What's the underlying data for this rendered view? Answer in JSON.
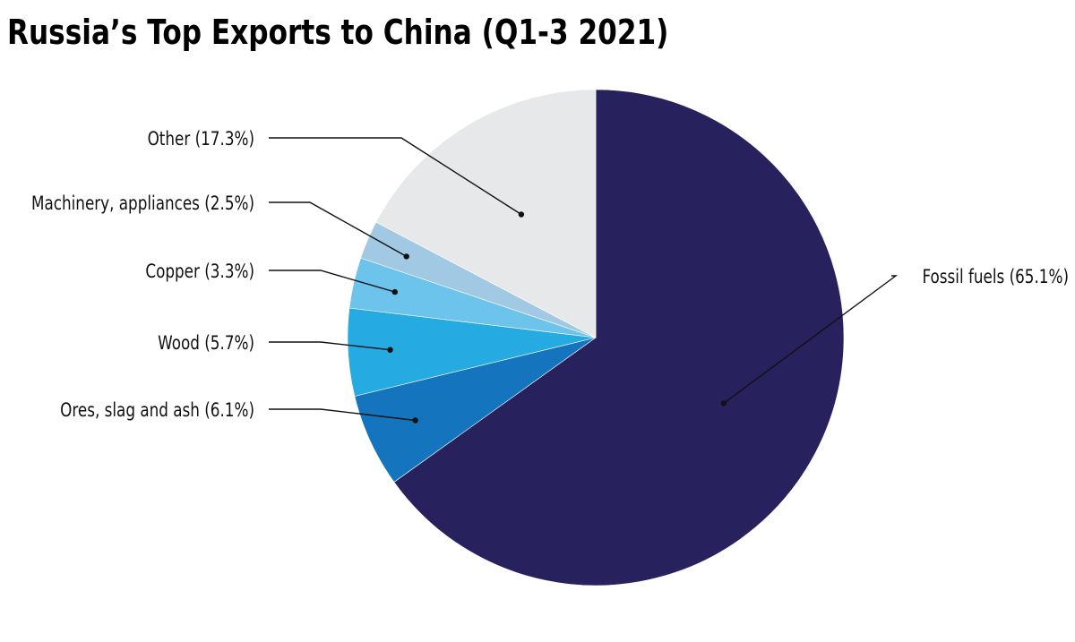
{
  "chart_data": {
    "type": "pie",
    "title": "Russia’s Top Exports to China (Q1-3 2021)",
    "slices": [
      {
        "name": "Fossil fuels",
        "value": 65.1,
        "label": "Fossil fuels (65.1%)",
        "color": "#27225e"
      },
      {
        "name": "Ores, slag and ash",
        "value": 6.1,
        "label": "Ores, slag and ash (6.1%)",
        "color": "#1474bd"
      },
      {
        "name": "Wood",
        "value": 5.7,
        "label": "Wood (5.7%)",
        "color": "#26aae2"
      },
      {
        "name": "Copper",
        "value": 3.3,
        "label": "Copper (3.3%)",
        "color": "#6cc4ec"
      },
      {
        "name": "Machinery, appliances",
        "value": 2.5,
        "label": "Machinery, appliances (2.5%)",
        "color": "#a2c9e3"
      },
      {
        "name": "Other",
        "value": 17.3,
        "label": "Other (17.3%)",
        "color": "#e7e8e9"
      }
    ],
    "start_angle": "12 o'clock",
    "direction": "clockwise",
    "legend": "none",
    "label_placement": "leader-lines"
  }
}
